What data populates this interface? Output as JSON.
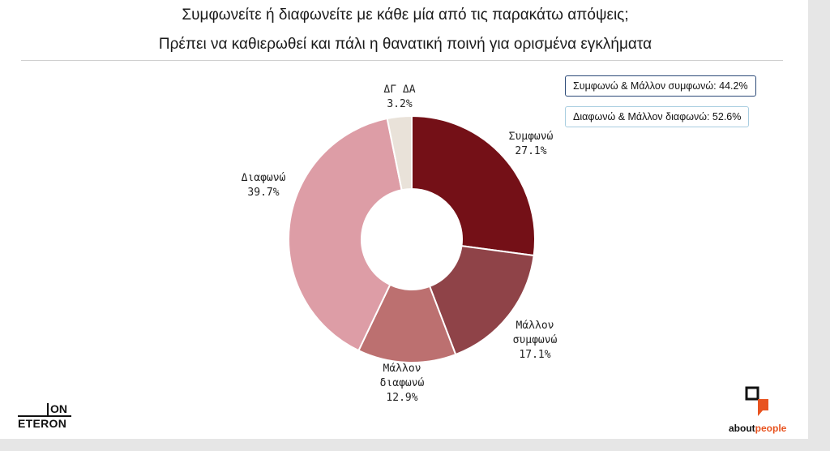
{
  "header": {
    "title": "Συμφωνείτε ή διαφωνείτε με κάθε μία από τις παρακάτω απόψεις;",
    "subtitle": "Πρέπει να καθιερωθεί και πάλι η θανατική ποινή για ορισμένα εγκλήματα"
  },
  "legend": {
    "agree_total": "Συμφωνώ & Μάλλον συμφωνώ: 44.2%",
    "disagree_total": "Διαφωνώ & Μάλλον διαφωνώ: 52.6%"
  },
  "chart_data": {
    "type": "pie",
    "donut": true,
    "slices": [
      {
        "label": "Συμφωνώ",
        "label_lines": [
          "Συμφωνώ"
        ],
        "value": 27.1,
        "value_label": "27.1%",
        "color": "#741017"
      },
      {
        "label": "Μάλλον συμφωνώ",
        "label_lines": [
          "Μάλλον",
          "συμφωνώ"
        ],
        "value": 17.1,
        "value_label": "17.1%",
        "color": "#8f4348"
      },
      {
        "label": "Μάλλον διαφωνώ",
        "label_lines": [
          "Μάλλον",
          "διαφωνώ"
        ],
        "value": 12.9,
        "value_label": "12.9%",
        "color": "#bc7070"
      },
      {
        "label": "Διαφωνώ",
        "label_lines": [
          "Διαφωνώ"
        ],
        "value": 39.7,
        "value_label": "39.7%",
        "color": "#dd9da6"
      },
      {
        "label": "ΔΓ ΔΑ",
        "label_lines": [
          "ΔΓ ΔΑ"
        ],
        "value": 3.2,
        "value_label": "3.2%",
        "color": "#e9e2d9"
      }
    ]
  },
  "logos": {
    "left_top": "ON",
    "left_bottom": "ETERON",
    "right_prefix": "about",
    "right_suffix": "people",
    "right_accent": "#e8531f"
  }
}
